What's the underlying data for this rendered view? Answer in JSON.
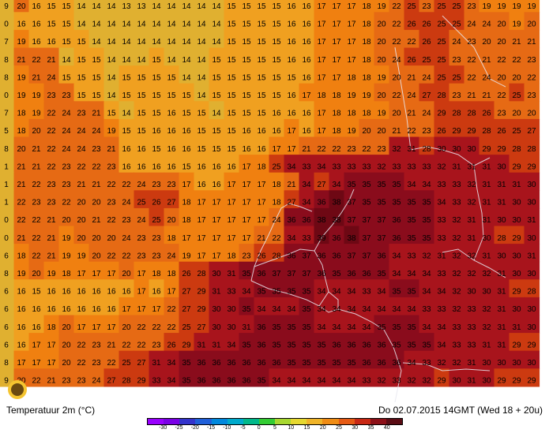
{
  "title": "Temperatuur 2m (°C)",
  "timestamp": "Do 02.07.2015 14GMT (Wed 18 + 20u)",
  "legend": {
    "ticks": [
      "-30",
      "-25",
      "-20",
      "-15",
      "-10",
      "-5",
      "0",
      "5",
      "10",
      "15",
      "20",
      "25",
      "30",
      "35",
      "40"
    ],
    "colors": [
      "#9900ff",
      "#7a00e6",
      "#3333cc",
      "#1f5fd9",
      "#0088dd",
      "#00aacc",
      "#00b88a",
      "#33cc33",
      "#a8d830",
      "#e6d830",
      "#f0b428",
      "#f08c14",
      "#e65a14",
      "#c82814",
      "#8c1018",
      "#5a0c14"
    ]
  },
  "scale": {
    "thresholds": [
      15,
      17,
      20,
      25,
      30,
      35,
      38
    ],
    "colors": [
      "#e0b030",
      "#f0a020",
      "#f08010",
      "#e66a14",
      "#cc3a10",
      "#a8141c",
      "#8a0c1c",
      "#6e0814"
    ]
  },
  "grid": {
    "rows": [
      "9 20 16 15 15 14 14 14 13 13 14 14 14 14 14 15 15 15 15 16 16 17 17 17 18 19 22 25 23 25 25 23 19 19 19 19",
      "0 16 16 15 15 14 14 14 14 14 14 14 14 14 14 15 15 15 15 16 16 17 17 17 18 20 22 26 26 25 25 24 24 20 19 20",
      "7 19 16 16 15 15 14 14 14 14 14 14 14 14 14 15 15 15 15 16 16 17 17 17 18 20 22 22 26 25 24 23 20 20 21 21",
      "8 21 22 21 14 15 15 14 14 14 15 14 14 14 15 15 15 15 15 16 16 17 17 17 18 20 24 26 25 25 23 22 21 22 22 23",
      "8 19 21 24 15 15 15 14 15 15 15 15 14 14 15 15 15 15 15 15 16 17 17 18 18 19 20 21 24 25 25 22 24 20 20 22",
      "0 19 19 23 23 15 15 14 15 15 15 15 15 14 15 15 15 15 15 16 17 18 18 19 19 20 22 24 27 28 23 21 21 22 25 23",
      "7 18 19 22 24 23 21 15 14 15 15 16 15 15 14 15 15 15 16 16 16 17 18 18 18 19 20 21 24 29 28 28 26 23 20 20",
      "5 18 20 22 24 24 24 19 15 15 16 16 16 15 15 15 16 16 16 17 16 17 18 19 20 20 21 22 23 26 29 29 28 26 25 27",
      "8 20 21 22 24 24 23 21 16 16 15 16 16 15 15 15 16 16 17 17 21 22 22 23 22 23 32 31 28 30 30 30 29 29 28 28",
      "1 21 21 22 23 22 22 23 16 16 16 16 15 16 16 16 17 18 25 34 33 34 33 33 33 32 33 33 33 32 31 31 31 30 29 29",
      "1 21 22 23 23 21 21 22 22 24 23 23 17 16 16 17 17 17 18 21 34 27 34 35 35 35 35 34 34 33 33 32 31 31 31 30",
      "1 22 23 23 22 20 20 23 24 25 26 27 18 17 17 17 17 17 18 27 34 36 38 37 35 35 35 35 35 34 33 32 31 31 30 30",
      "0 22 22 21 20 20 21 22 23 24 25 20 18 17 17 17 17 17 24 36 36 38 38 37 37 37 36 35 35 33 32 31 31 30 30 31",
      "0 21 22 21 19 20 20 20 24 23 23 18 17 17 17 17 17 21 22 34 33 39 36 38 37 37 36 35 35 33 32 31 30 28 29 30",
      "6 18 22 21 19 19 20 22 22 23 23 24 19 17 17 18 23 26 28 36 37 36 36 37 37 36 34 33 32 31 32 32 31 30 30 31",
      "8 19 20 19 18 17 17 17 20 17 18 18 26 28 30 31 35 36 37 37 37 36 35 36 36 35 34 34 34 33 32 32 32 31 30 30",
      "6 16 15 16 16 16 16 16 16 17 16 17 27 29 31 33 34 35 35 35 35 34 34 34 33 34 35 35 34 34 32 30 30 31 29 28",
      "6 16 16 16 16 16 16 16 17 17 17 22 27 29 30 30 35 34 34 34 35 34 34 34 34 34 34 34 33 33 32 33 32 31 30 30",
      "6 16 16 18 20 17 17 17 20 22 22 22 25 27 30 30 31 36 35 35 35 34 34 34 34 35 35 35 34 34 33 33 32 31 31 30",
      "6 16 17 17 20 22 23 21 22 22 23 26 29 31 31 34 35 36 35 35 35 35 36 36 36 36 35 35 35 34 33 33 31 31 29 29",
      "8 17 17 17 20 22 23 22 25 27 31 34 35 36 36 36 36 36 36 35 35 35 35 35 36 36 36 34 33 32 32 31 30 30 30 30",
      "9 20 22 21 23 23 24 27 28 29 33 34 35 36 36 36 36 35 34 34 34 34 34 34 33 32 33 32 32 29 30 31 30 29 29 29"
    ]
  }
}
